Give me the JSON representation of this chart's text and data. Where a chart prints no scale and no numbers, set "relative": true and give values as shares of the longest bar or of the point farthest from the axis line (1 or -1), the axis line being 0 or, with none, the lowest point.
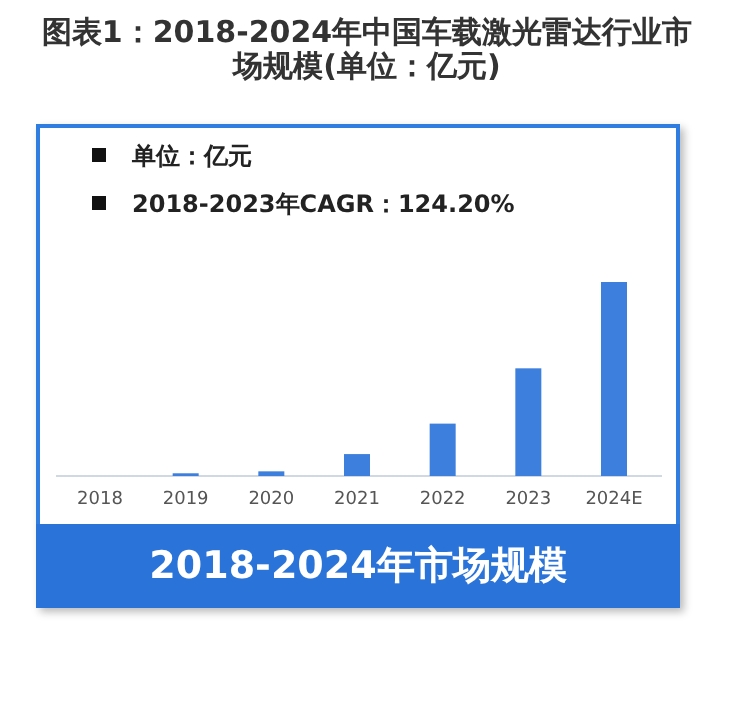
{
  "chart_data": {
    "type": "bar",
    "title": "图表1：2018-2024年中国车载激光雷达行业市场规模(单位：亿元)",
    "relative": true,
    "categories": [
      "2018",
      "2019",
      "2020",
      "2021",
      "2022",
      "2023",
      "2024E"
    ],
    "values": [
      null,
      0.014,
      0.024,
      0.113,
      0.27,
      0.555,
      1
    ],
    "color": "#3d7fdc",
    "annotations": [
      "单位：亿元",
      "2018-2023年CAGR：124.20%",
      "2018-2024年市场规模"
    ]
  }
}
